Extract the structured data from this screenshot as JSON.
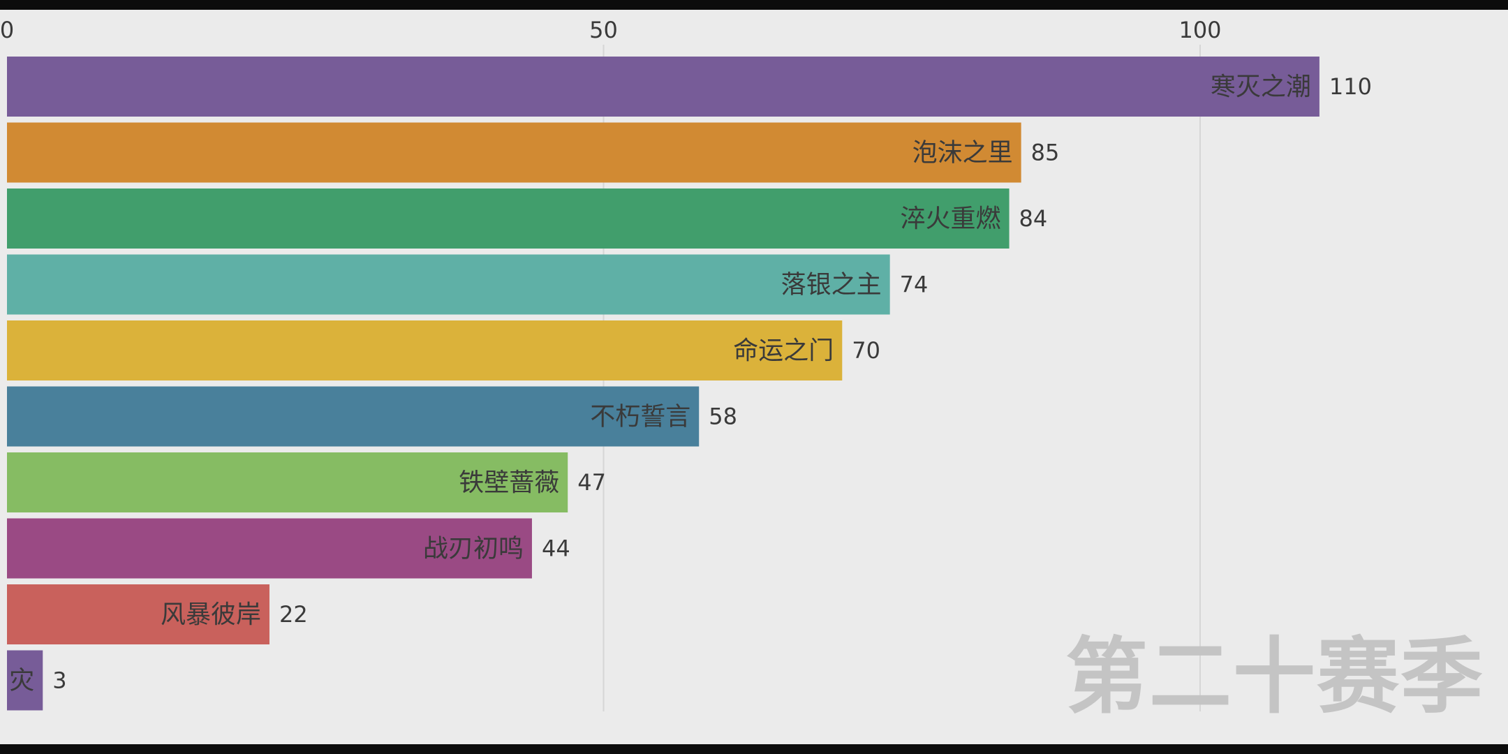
{
  "period_label": "第二十赛季",
  "chart_data": {
    "type": "bar",
    "orientation": "horizontal",
    "title": "",
    "xlabel": "",
    "ylabel": "",
    "xlim": [
      0,
      123
    ],
    "x_ticks": [
      0,
      50,
      100
    ],
    "grid": true,
    "categories": [
      "寒灭之潮",
      "泡沫之里",
      "淬火重燃",
      "落银之主",
      "命运之门",
      "不朽誓言",
      "铁壁蔷薇",
      "战刃初鸣",
      "风暴彼岸",
      "灾"
    ],
    "values": [
      110,
      85,
      84,
      74,
      70,
      58,
      47,
      44,
      22,
      3
    ],
    "colors": [
      "#775c98",
      "#d18a33",
      "#419e6c",
      "#5fb0a6",
      "#dbb23a",
      "#49809b",
      "#86bc63",
      "#9a4a84",
      "#c9615c",
      "#775c98"
    ]
  }
}
